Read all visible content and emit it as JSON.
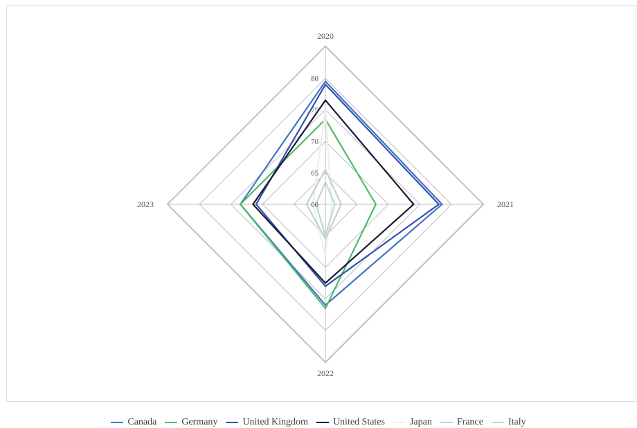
{
  "chart_data": {
    "type": "radar",
    "categories": [
      "2020",
      "2021",
      "2022",
      "2023"
    ],
    "radial_axis": {
      "min": 60,
      "max": 80,
      "ticks": [
        60,
        65,
        70,
        75,
        80
      ]
    },
    "grid": true,
    "legend_position": "bottom",
    "series": [
      {
        "name": "Canada",
        "color": "#4472c4",
        "values": [
          79.5,
          78.5,
          76.0,
          73.5
        ]
      },
      {
        "name": "Germany",
        "color": "#4cbb6a",
        "values": [
          73.5,
          68.0,
          76.5,
          73.5
        ]
      },
      {
        "name": "United Kingdom",
        "color": "#2e52b2",
        "values": [
          79.0,
          78.0,
          73.0,
          71.0
        ]
      },
      {
        "name": "United States",
        "color": "#1b1b33",
        "values": [
          76.5,
          74.0,
          72.5,
          71.5
        ]
      },
      {
        "name": "Japan",
        "color": "#eeeeee",
        "values": [
          75.0,
          61.0,
          68.0,
          62.0
        ]
      },
      {
        "name": "France",
        "color": "#c8cfd4",
        "values": [
          65.5,
          62.5,
          65.5,
          63.0
        ]
      },
      {
        "name": "Italy",
        "color": "#b9dbd0",
        "values": [
          63.5,
          61.5,
          65.0,
          61.5
        ]
      }
    ]
  }
}
